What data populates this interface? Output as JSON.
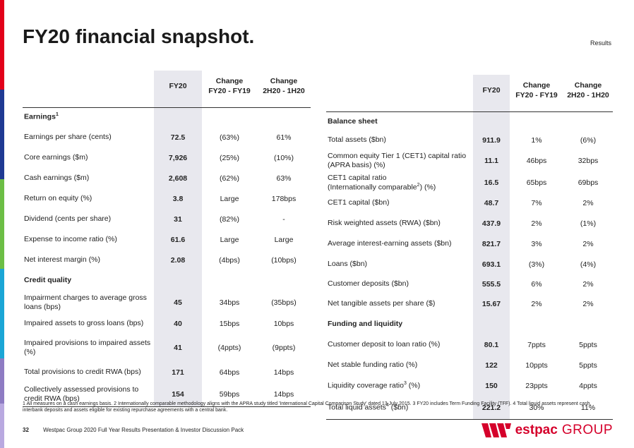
{
  "title": "FY20 financial snapshot.",
  "section": "Results",
  "stripe_colors": [
    "#e2001a",
    "#e2001a",
    "#1f3a93",
    "#1f3a93",
    "#6cbe45",
    "#6cbe45",
    "#1ba6d6",
    "#1ba6d6",
    "#8e7cc3",
    "#b9a9e0"
  ],
  "left": {
    "headers": {
      "fy": "FY20",
      "chg1_line1": "Change",
      "chg1_line2": "FY20 - FY19",
      "chg2_line1": "Change",
      "chg2_line2": "2H20 - 1H20"
    },
    "sections": [
      {
        "title": "Earnings",
        "sup": "1",
        "rows": [
          {
            "label": "Earnings per share (cents)",
            "fy": "72.5",
            "c1": "(63%)",
            "c2": "61%"
          },
          {
            "label": "Core earnings ($m)",
            "fy": "7,926",
            "c1": "(25%)",
            "c2": "(10%)"
          },
          {
            "label": "Cash earnings ($m)",
            "fy": "2,608",
            "c1": "(62%)",
            "c2": "63%"
          },
          {
            "label": "Return on equity (%)",
            "fy": "3.8",
            "c1": "Large",
            "c2": "178bps"
          },
          {
            "label": "Dividend (cents per share)",
            "fy": "31",
            "c1": "(82%)",
            "c2": "-"
          },
          {
            "label": "Expense to income ratio (%)",
            "fy": "61.6",
            "c1": "Large",
            "c2": "Large"
          },
          {
            "label": "Net interest margin (%)",
            "fy": "2.08",
            "c1": "(4bps)",
            "c2": "(10bps)"
          }
        ]
      },
      {
        "title": "Credit quality",
        "sup": "",
        "rows": [
          {
            "label": "Impairment charges to average gross loans (bps)",
            "fy": "45",
            "c1": "34bps",
            "c2": "(35bps)"
          },
          {
            "label": "Impaired assets to gross loans (bps)",
            "fy": "40",
            "c1": "15bps",
            "c2": "10bps"
          },
          {
            "label": "Impaired provisions to impaired assets (%)",
            "fy": "41",
            "c1": "(4ppts)",
            "c2": "(9ppts)"
          },
          {
            "label": "Total provisions to credit RWA (bps)",
            "fy": "171",
            "c1": "64bps",
            "c2": "14bps"
          },
          {
            "label": "Collectively assessed provisions to credit RWA (bps)",
            "fy": "154",
            "c1": "59bps",
            "c2": "14bps"
          }
        ]
      }
    ]
  },
  "right": {
    "headers": {
      "fy": "FY20",
      "chg1_line1": "Change",
      "chg1_line2": "FY20 - FY19",
      "chg2_line1": "Change",
      "chg2_line2": "2H20 - 1H20"
    },
    "sections": [
      {
        "title": "Balance sheet",
        "rows": [
          {
            "label": "Total assets ($bn)",
            "fy": "911.9",
            "c1": "1%",
            "c2": "(6%)"
          },
          {
            "label": "Common equity Tier 1 (CET1) capital ratio (APRA basis) (%)",
            "fy": "11.1",
            "c1": "46bps",
            "c2": "32bps"
          },
          {
            "label_a": "CET1 capital ratio",
            "label_b": "(Internationally comparable",
            "sup": "2",
            "label_c": ") (%)",
            "fy": "16.5",
            "c1": "65bps",
            "c2": "69bps"
          },
          {
            "label": "CET1 capital ($bn)",
            "fy": "48.7",
            "c1": "7%",
            "c2": "2%"
          },
          {
            "label": "Risk weighted assets (RWA) ($bn)",
            "fy": "437.9",
            "c1": "2%",
            "c2": "(1%)"
          },
          {
            "label": "Average interest-earning assets ($bn)",
            "fy": "821.7",
            "c1": "3%",
            "c2": "2%"
          },
          {
            "label": "Loans ($bn)",
            "fy": "693.1",
            "c1": "(3%)",
            "c2": "(4%)"
          },
          {
            "label": "Customer deposits ($bn)",
            "fy": "555.5",
            "c1": "6%",
            "c2": "2%"
          },
          {
            "label": "Net tangible assets per share ($)",
            "fy": "15.67",
            "c1": "2%",
            "c2": "2%"
          }
        ]
      },
      {
        "title": "Funding and liquidity",
        "rows": [
          {
            "label": "Customer deposit to loan ratio (%)",
            "fy": "80.1",
            "c1": "7ppts",
            "c2": "5ppts"
          },
          {
            "label": "Net stable funding ratio (%)",
            "fy": "122",
            "c1": "10ppts",
            "c2": "5ppts"
          },
          {
            "label_a": "Liquidity coverage ratio",
            "sup": "3",
            "label_c": " (%)",
            "fy": "150",
            "c1": "23ppts",
            "c2": "4ppts"
          },
          {
            "label_a": "Total liquid assets",
            "sup": "4",
            "label_c": " ($bn)",
            "fy": "221.2",
            "c1": "30%",
            "c2": "11%"
          }
        ]
      }
    ]
  },
  "footnote": "1 All measures on a cash earnings basis.  2 Internationally comparable methodology aligns with the APRA study titled 'International Capital Comparison Study' dated 13 July 2015. 3 FY20 includes Term Funding Facility (TFF).  4 Total liquid assets represent cash, interbank deposits and assets eligible for existing repurchase agreements with a central bank.",
  "footer": {
    "page": "32",
    "text": "Westpac Group 2020 Full Year Results Presentation & Investor Discussion Pack"
  },
  "logo": {
    "word": "estpac",
    "group": "GROUP",
    "color": "#d5002b"
  }
}
